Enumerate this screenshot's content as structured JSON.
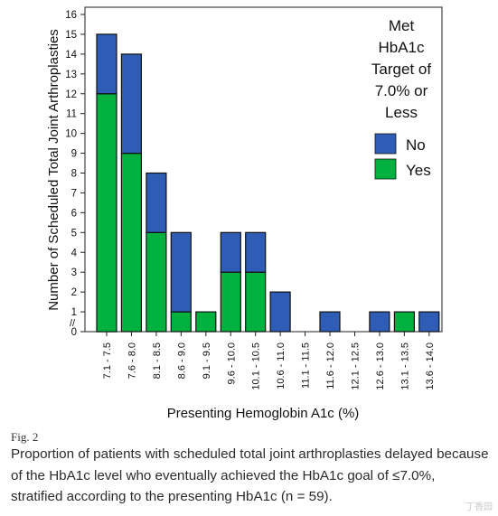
{
  "chart_data": {
    "type": "bar",
    "stacked": true,
    "categories": [
      "7.1 - 7.5",
      "7.6 - 8.0",
      "8.1 - 8.5",
      "8.6 - 9.0",
      "9.1 - 9.5",
      "9.6 - 10.0",
      "10.1 - 10.5",
      "10.6 - 11.0",
      "11.1 - 11.5",
      "11.6 - 12.0",
      "12.1 - 12.5",
      "12.6 - 13.0",
      "13.1 - 13.5",
      "13.6 - 14.0"
    ],
    "series": [
      {
        "name": "Yes",
        "color": "#00b140",
        "values": [
          12,
          9,
          5,
          1,
          1,
          3,
          3,
          0,
          0,
          0,
          0,
          0,
          1,
          0
        ]
      },
      {
        "name": "No",
        "color": "#2f5db5",
        "values": [
          3,
          5,
          3,
          4,
          0,
          2,
          2,
          2,
          0,
          1,
          0,
          1,
          0,
          1
        ]
      }
    ],
    "ylabel": "Number of Scheduled Total Joint Arthroplasties",
    "xlabel": "Presenting Hemoglobin A1c (%)",
    "yticks": [
      0,
      1,
      2,
      3,
      4,
      5,
      6,
      7,
      8,
      9,
      10,
      11,
      12,
      13,
      14,
      15,
      16
    ],
    "ylim": [
      0,
      16
    ],
    "axis_break": "//",
    "grid": false,
    "legend": {
      "title_lines": [
        "Met",
        "HbA1c",
        "Target of",
        "7.0% or",
        "Less"
      ],
      "entries": [
        {
          "label": "No",
          "color": "#2f5db5"
        },
        {
          "label": "Yes",
          "color": "#00b140"
        }
      ],
      "placement": "top-right"
    }
  },
  "figure": {
    "label": "Fig. 2",
    "caption": "Proportion of patients with scheduled total joint arthroplasties delayed because of the HbA1c level who eventually achieved the HbA1c goal of ≤7.0%, stratified according to the presenting HbA1c (n = 59).",
    "watermark": "丁香园"
  }
}
